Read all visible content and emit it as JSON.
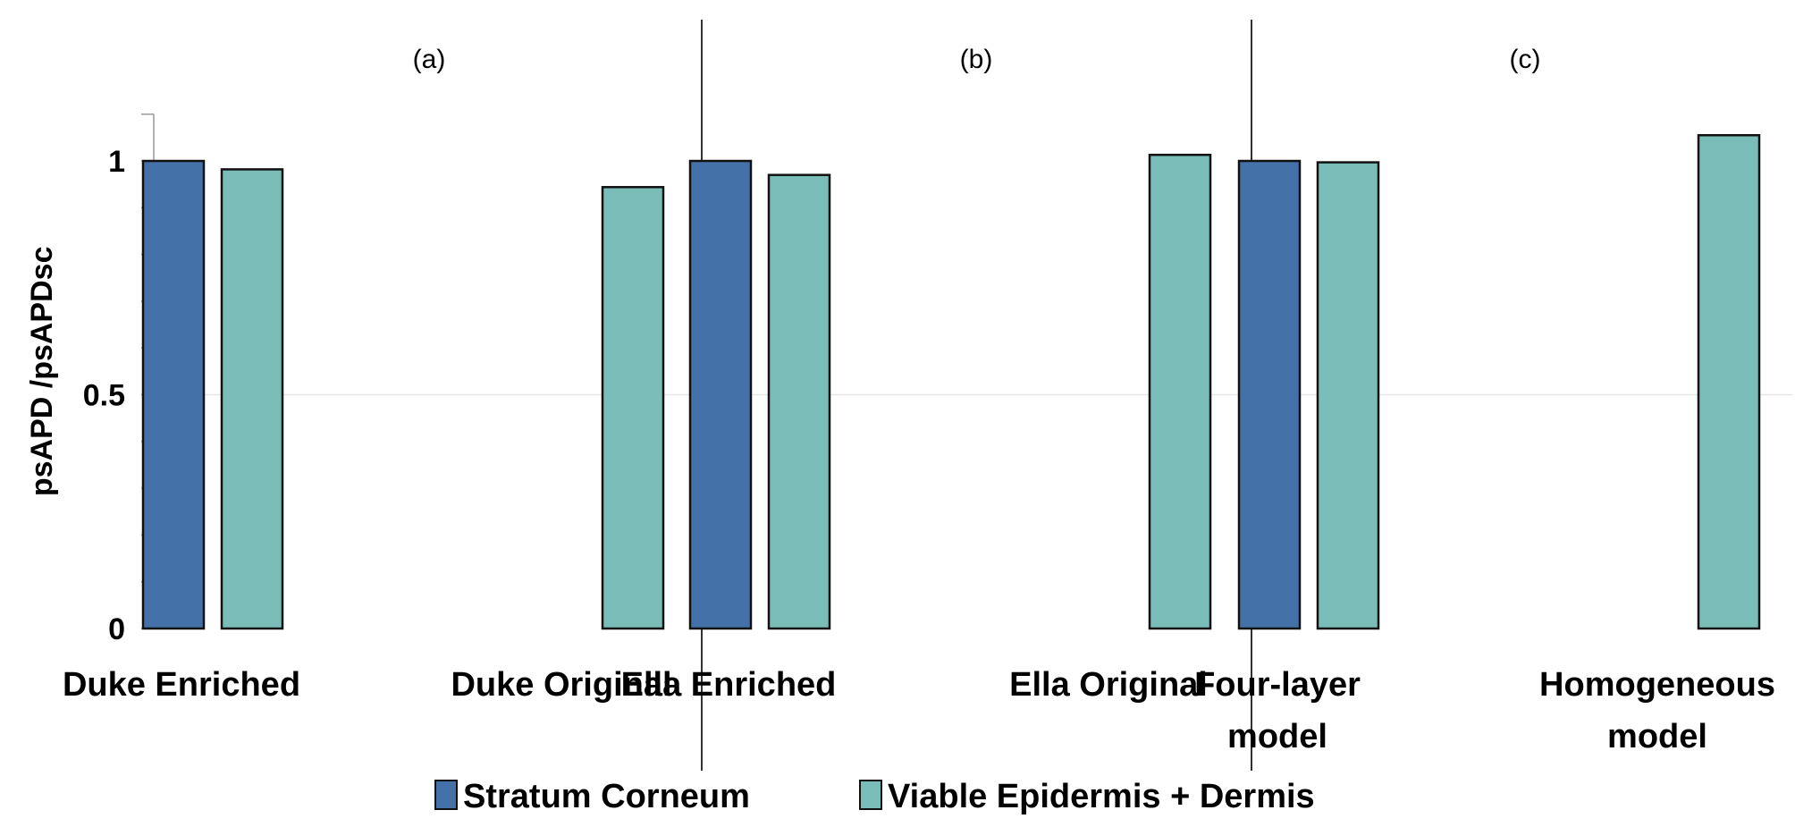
{
  "chart_data": {
    "type": "bar",
    "title": "",
    "xlabel": "",
    "ylabel": "psAPD /psAPDsc",
    "ylim": [
      0,
      1.1
    ],
    "yticks": [
      {
        "value": 0,
        "label": "0"
      },
      {
        "value": 0.5,
        "label": "0.5"
      },
      {
        "value": 1,
        "label": "1"
      }
    ],
    "grid": "horizontal at 0.5",
    "panels": [
      {
        "label": "(a)",
        "categories": [
          {
            "name": "Duke Enriched",
            "lines": [
              "Duke Enriched"
            ],
            "values": {
              "Stratum Corneum": 1.0,
              "Viable Epidermis + Dermis": 0.982
            }
          },
          {
            "name": "Duke Original",
            "lines": [
              "Duke Original"
            ],
            "values": {
              "Viable Epidermis + Dermis": 0.944
            }
          }
        ]
      },
      {
        "label": "(b)",
        "categories": [
          {
            "name": "Ella Enriched",
            "lines": [
              "Ella Enriched"
            ],
            "values": {
              "Stratum Corneum": 1.0,
              "Viable Epidermis + Dermis": 0.97
            }
          },
          {
            "name": "Ella Original",
            "lines": [
              "Ella Original"
            ],
            "values": {
              "Viable Epidermis + Dermis": 1.013
            }
          }
        ]
      },
      {
        "label": "(c)",
        "categories": [
          {
            "name": "Four-layer model",
            "lines": [
              "Four-layer",
              "model"
            ],
            "values": {
              "Stratum Corneum": 1.0,
              "Viable Epidermis + Dermis": 0.997
            }
          },
          {
            "name": "Homogeneous model",
            "lines": [
              "Homogeneous",
              "model"
            ],
            "values": {
              "Viable Epidermis + Dermis": 1.055
            }
          }
        ]
      }
    ],
    "series": [
      {
        "name": "Stratum Corneum",
        "color": "#4472a8"
      },
      {
        "name": "Viable Epidermis + Dermis",
        "color": "#7abdb8"
      }
    ],
    "legend_position": "bottom-center"
  }
}
